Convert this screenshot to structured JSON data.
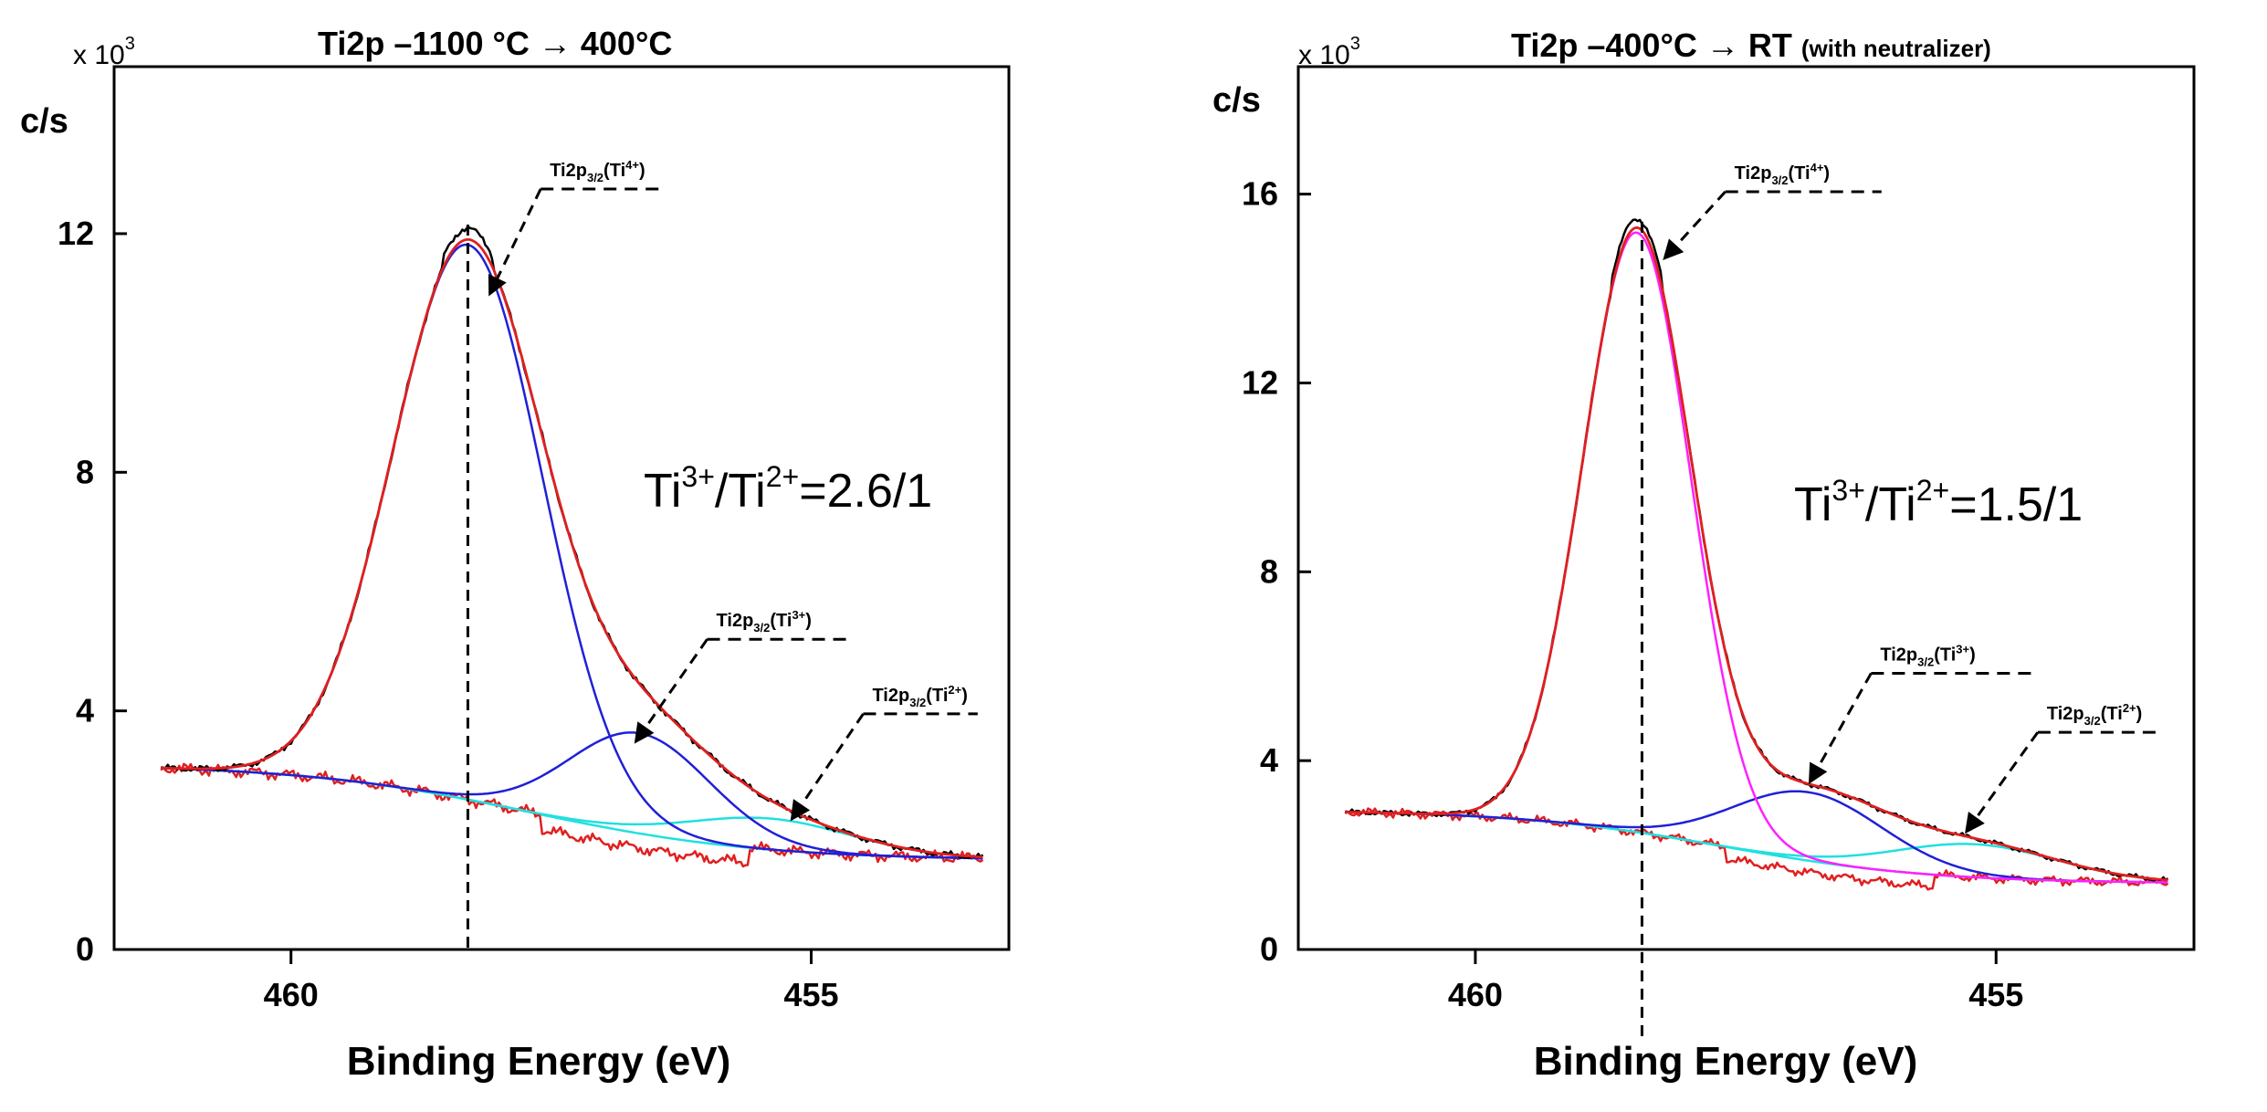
{
  "chart_data": [
    {
      "type": "line",
      "title_main": "Ti2p –1100 °C → 400°C",
      "title_sub": "",
      "multiplier": "x 10",
      "multiplier_exp": "3",
      "ylabel": "c/s",
      "xlabel": "Binding Energy (eV)",
      "xlim": [
        461.7,
        453.1
      ],
      "ylim": [
        0,
        14.8
      ],
      "x_ticks": [
        460,
        455
      ],
      "y_ticks": [
        0,
        4,
        8,
        12
      ],
      "x_tick_labels": [
        "460",
        "455"
      ],
      "y_tick_labels": [
        "0",
        "4",
        "8",
        "12"
      ],
      "ratio_parts": [
        "Ti",
        "3+",
        "/Ti",
        "2+",
        "=2.6/1"
      ],
      "peak_position": 458.3,
      "components": {
        "ti4_color": "#2020d8",
        "ti3_color": "#2020d8",
        "ti2_color": "#20e0e0",
        "envelope_color": "#e02020",
        "raw_color": "#000000",
        "residual_color": "#e02020"
      },
      "peaks": {
        "ti4": {
          "center": 458.3,
          "amplitude": 9.3,
          "width": 0.72
        },
        "ti3": {
          "center": 456.65,
          "amplitude": 1.68,
          "width": 0.68
        },
        "ti2": {
          "center": 455.4,
          "amplitude": 0.52,
          "width": 0.8
        }
      },
      "background": {
        "high": 3.1,
        "low": 1.5,
        "center": 457.7,
        "spread": 1.1
      },
      "annotations": [
        {
          "key": "ti4",
          "label": "Ti2p",
          "sub": "3/2",
          "paren": "(Ti",
          "sup": "4+",
          "close": ")",
          "target": [
            458.1,
            10.95
          ],
          "elbow": [
            457.6,
            12.75
          ],
          "line_end": 456.4
        },
        {
          "key": "ti3",
          "label": "Ti2p",
          "sub": "3/2",
          "paren": "(Ti",
          "sup": "3+",
          "close": ")",
          "target": [
            456.7,
            3.45
          ],
          "elbow": [
            456.0,
            5.2
          ],
          "line_end": 454.6
        },
        {
          "key": "ti2",
          "label": "Ti2p",
          "sub": "3/2",
          "paren": "(Ti",
          "sup": "2+",
          "close": ")",
          "target": [
            455.2,
            2.15
          ],
          "elbow": [
            454.5,
            3.95
          ],
          "line_end": 453.4
        }
      ]
    },
    {
      "type": "line",
      "title_main": "Ti2p –400°C → RT",
      "title_sub": "(with neutralizer)",
      "multiplier": "x 10",
      "multiplier_exp": "3",
      "ylabel": "c/s",
      "xlabel": "Binding Energy (eV)",
      "xlim": [
        461.7,
        453.1
      ],
      "ylim": [
        0,
        18.7
      ],
      "x_ticks": [
        460,
        455
      ],
      "y_ticks": [
        0,
        4,
        8,
        12,
        16
      ],
      "x_tick_labels": [
        "460",
        "455"
      ],
      "y_tick_labels": [
        "0",
        "4",
        "8",
        "12",
        "16"
      ],
      "ratio_parts": [
        "Ti",
        "3+",
        "/Ti",
        "2+",
        "=1.5/1"
      ],
      "peak_position": 458.4,
      "components": {
        "ti4_color": "#ff20ff",
        "ti3_color": "#2020d8",
        "ti2_color": "#20e0e0",
        "envelope_color": "#e02020",
        "raw_color": "#000000",
        "residual_color": "#e02020"
      },
      "peaks": {
        "ti4": {
          "center": 458.45,
          "amplitude": 12.7,
          "width": 0.52
        },
        "ti3": {
          "center": 456.8,
          "amplitude": 1.45,
          "width": 0.72
        },
        "ti2": {
          "center": 455.2,
          "amplitude": 0.7,
          "width": 0.8
        }
      },
      "background": {
        "high": 2.95,
        "low": 1.4,
        "center": 457.6,
        "spread": 1.0
      },
      "annotations": [
        {
          "key": "ti4",
          "label": "Ti2p",
          "sub": "3/2",
          "paren": "(Ti",
          "sup": "4+",
          "close": ")",
          "target": [
            458.2,
            14.6
          ],
          "elbow": [
            457.6,
            16.05
          ],
          "line_end": 456.1
        },
        {
          "key": "ti3",
          "label": "Ti2p",
          "sub": "3/2",
          "paren": "(Ti",
          "sup": "3+",
          "close": ")",
          "target": [
            456.8,
            3.5
          ],
          "elbow": [
            456.2,
            5.85
          ],
          "line_end": 454.6
        },
        {
          "key": "ti2",
          "label": "Ti2p",
          "sub": "3/2",
          "paren": "(Ti",
          "sup": "2+",
          "close": ")",
          "target": [
            455.3,
            2.45
          ],
          "elbow": [
            454.6,
            4.6
          ],
          "line_end": 453.4
        }
      ]
    }
  ]
}
